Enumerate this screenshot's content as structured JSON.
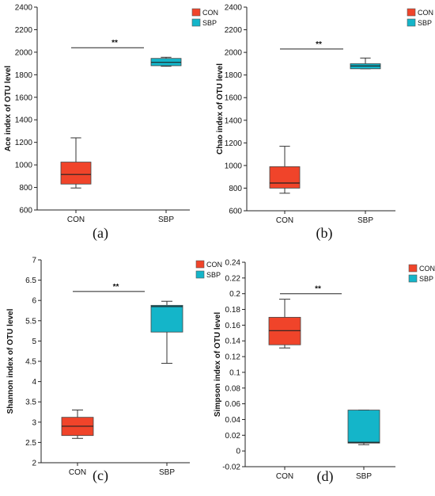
{
  "chart_data": [
    {
      "type": "box",
      "panel_label": "(a)",
      "ylabel": "Ace index of OTU level",
      "ylim": [
        600,
        2400
      ],
      "yticks": [
        600,
        800,
        1000,
        1200,
        1400,
        1600,
        1800,
        2000,
        2200,
        2400
      ],
      "ytick_labels": [
        "600",
        "800",
        "1000",
        "1200",
        "1400",
        "1600",
        "1800",
        "2000",
        "2200",
        "2400"
      ],
      "categories": [
        "CON",
        "SBP"
      ],
      "boxes": [
        {
          "name": "CON",
          "color": "#f0442a",
          "min": 795,
          "q1": 830,
          "median": 915,
          "q3": 1025,
          "max": 1240
        },
        {
          "name": "SBP",
          "color": "#14b5c9",
          "min": 1875,
          "q1": 1880,
          "median": 1910,
          "q3": 1945,
          "max": 1955
        }
      ],
      "significance": {
        "label": "**",
        "value": 2040
      },
      "legend": {
        "entries": [
          "CON",
          "SBP"
        ],
        "position": "top-right"
      }
    },
    {
      "type": "box",
      "panel_label": "(b)",
      "ylabel": "Chao index of OTU level",
      "ylim": [
        600,
        2400
      ],
      "yticks": [
        600,
        800,
        1000,
        1200,
        1400,
        1600,
        1800,
        2000,
        2200,
        2400
      ],
      "ytick_labels": [
        "600",
        "800",
        "1000",
        "1200",
        "1400",
        "1600",
        "1800",
        "2000",
        "2200",
        "2400"
      ],
      "categories": [
        "CON",
        "SBP"
      ],
      "boxes": [
        {
          "name": "CON",
          "color": "#f0442a",
          "min": 755,
          "q1": 800,
          "median": 845,
          "q3": 990,
          "max": 1170
        },
        {
          "name": "SBP",
          "color": "#14b5c9",
          "min": 1855,
          "q1": 1855,
          "median": 1880,
          "q3": 1900,
          "max": 1950
        }
      ],
      "significance": {
        "label": "**",
        "value": 2030
      },
      "legend": {
        "entries": [
          "CON",
          "SBP"
        ],
        "position": "top-right"
      }
    },
    {
      "type": "box",
      "panel_label": "(c)",
      "ylabel": "Shannon index of OTU level",
      "ylim": [
        2,
        7
      ],
      "yticks": [
        2,
        2.5,
        3,
        3.5,
        4,
        4.5,
        5,
        5.5,
        6,
        6.5,
        7
      ],
      "ytick_labels": [
        "2",
        "2.5",
        "3",
        "3.5",
        "4",
        "4.5",
        "5",
        "5.5",
        "6",
        "6.5",
        "7"
      ],
      "categories": [
        "CON",
        "SBP"
      ],
      "boxes": [
        {
          "name": "CON",
          "color": "#f0442a",
          "min": 2.6,
          "q1": 2.67,
          "median": 2.9,
          "q3": 3.12,
          "max": 3.3
        },
        {
          "name": "SBP",
          "color": "#14b5c9",
          "min": 4.45,
          "q1": 5.22,
          "median": 5.85,
          "q3": 5.88,
          "max": 5.98
        }
      ],
      "significance": {
        "label": "**",
        "value": 6.22
      },
      "legend": {
        "entries": [
          "CON",
          "SBP"
        ],
        "position": "top-right"
      }
    },
    {
      "type": "box",
      "panel_label": "(d)",
      "ylabel": "Simpson index of OTU level",
      "ylim": [
        -0.02,
        0.24
      ],
      "yticks": [
        -0.02,
        0,
        0.02,
        0.04,
        0.06,
        0.08,
        0.1,
        0.12,
        0.14,
        0.16,
        0.18,
        0.2,
        0.22,
        0.24
      ],
      "ytick_labels": [
        "-0.02",
        "0",
        "0.02",
        "0.04",
        "0.06",
        "0.08",
        "0.1",
        "0.12",
        "0.14",
        "0.16",
        "0.18",
        "0.2",
        "0.22",
        "0.24"
      ],
      "categories": [
        "CON",
        "SBP"
      ],
      "boxes": [
        {
          "name": "CON",
          "color": "#f0442a",
          "min": 0.131,
          "q1": 0.135,
          "median": 0.153,
          "q3": 0.17,
          "max": 0.193
        },
        {
          "name": "SBP",
          "color": "#14b5c9",
          "min": 0.008,
          "q1": 0.01,
          "median": 0.011,
          "q3": 0.052,
          "max": 0.052
        }
      ],
      "significance": {
        "label": "**",
        "value": 0.2
      },
      "legend": {
        "entries": [
          "CON",
          "SBP"
        ],
        "position": "top-right"
      }
    }
  ]
}
